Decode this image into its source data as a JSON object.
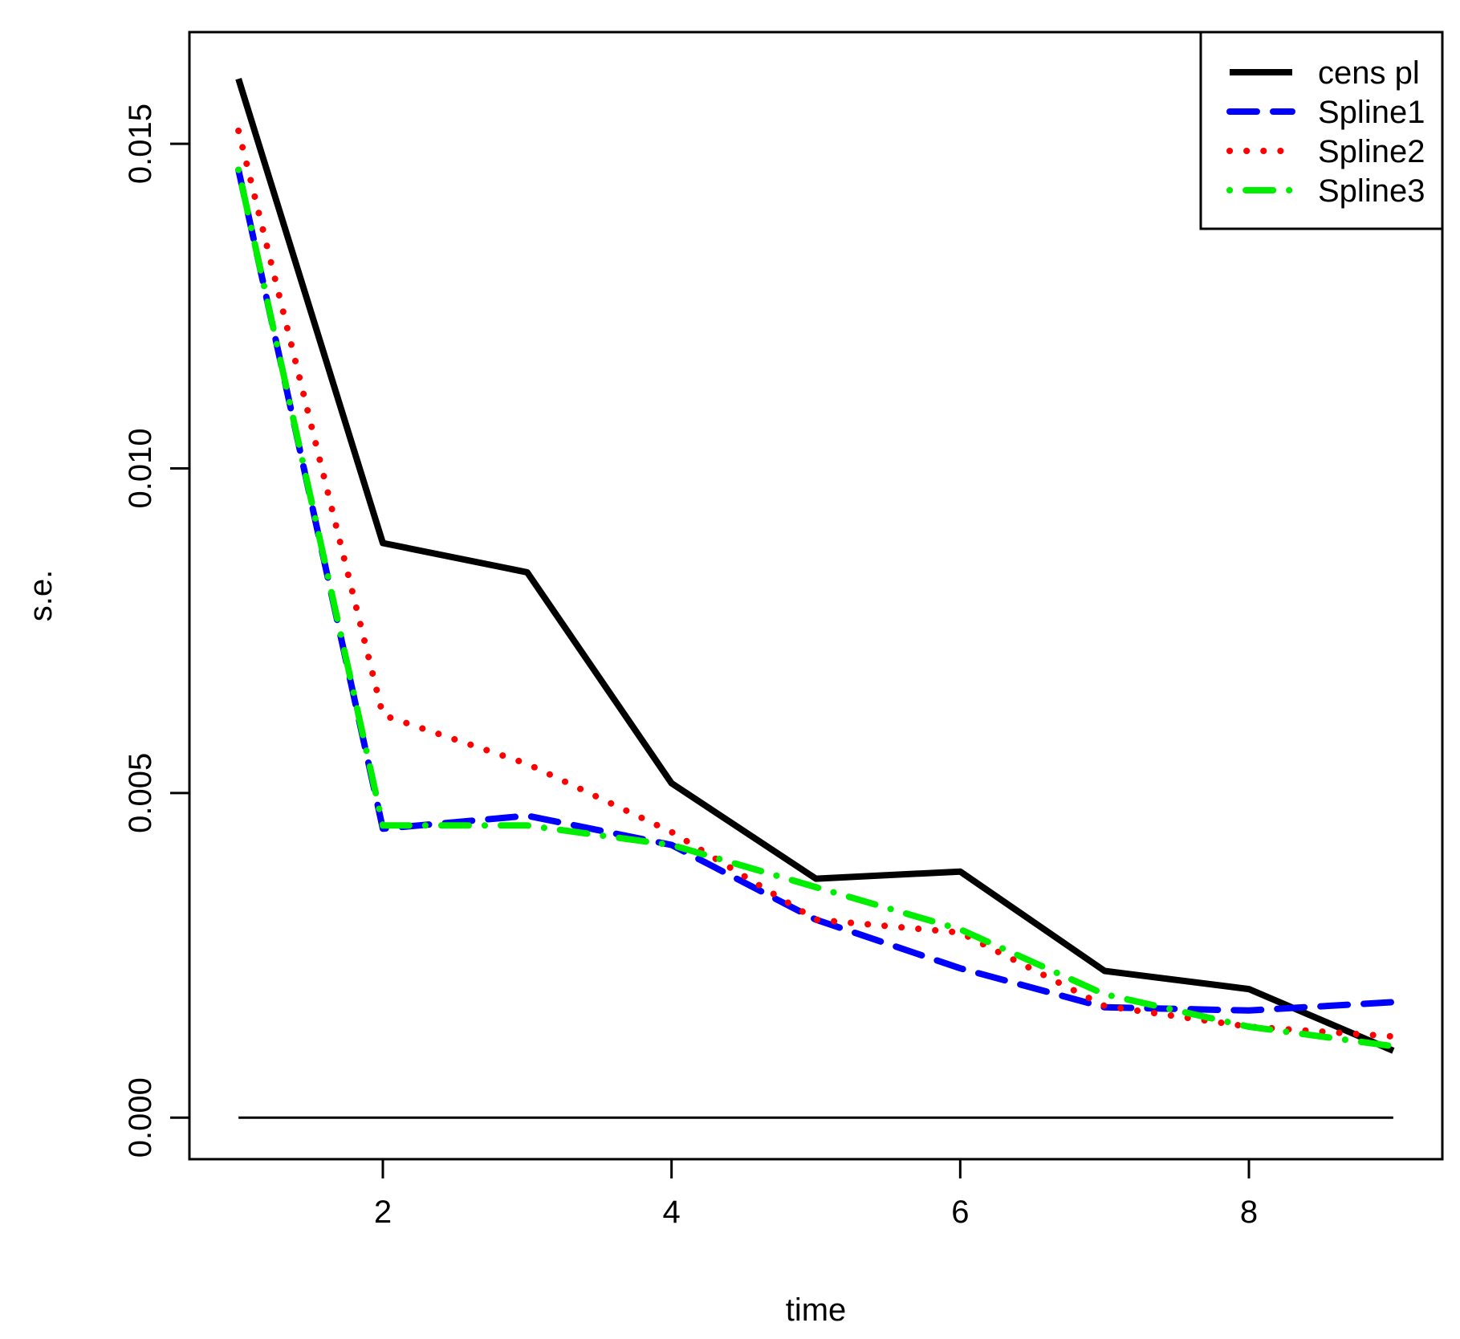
{
  "chart_data": {
    "type": "line",
    "title": "",
    "xlabel": "time",
    "ylabel": "s.e.",
    "xlim": [
      0.66,
      9.34
    ],
    "ylim": [
      -0.00064,
      0.01672
    ],
    "xticks": [
      2,
      4,
      6,
      8
    ],
    "xtick_labels": [
      "2",
      "4",
      "6",
      "8"
    ],
    "yticks": [
      0.0,
      0.005,
      0.01,
      0.015
    ],
    "ytick_labels": [
      "0.000",
      "0.005",
      "0.010",
      "0.015"
    ],
    "grid": false,
    "legend_position": "top-right",
    "x": [
      1,
      2,
      3,
      4,
      5,
      6,
      7,
      8,
      9
    ],
    "series": [
      {
        "name": "cens pl",
        "color": "#000000",
        "dash": "solid",
        "width": 8,
        "values": [
          0.016,
          0.00885,
          0.0084,
          0.00515,
          0.00368,
          0.00379,
          0.00226,
          0.00198,
          0.00103
        ]
      },
      {
        "name": "Spline1",
        "color": "#0000ff",
        "dash": "dashed",
        "width": 8,
        "values": [
          0.0146,
          0.00445,
          0.00465,
          0.0042,
          0.00305,
          0.0023,
          0.0017,
          0.00165,
          0.00178
        ]
      },
      {
        "name": "Spline2",
        "color": "#ff0000",
        "dash": "dotted",
        "width": 8,
        "values": [
          0.0152,
          0.0062,
          0.00545,
          0.0044,
          0.00305,
          0.00285,
          0.00172,
          0.0014,
          0.00125
        ]
      },
      {
        "name": "Spline3",
        "color": "#00ee00",
        "dash": "dotdash",
        "width": 8,
        "values": [
          0.0146,
          0.0045,
          0.0045,
          0.0042,
          0.00355,
          0.0029,
          0.0019,
          0.0014,
          0.0011
        ]
      }
    ],
    "reference_line": {
      "y": 0.0,
      "x_from": 1,
      "x_to": 9,
      "color": "#000000"
    }
  }
}
